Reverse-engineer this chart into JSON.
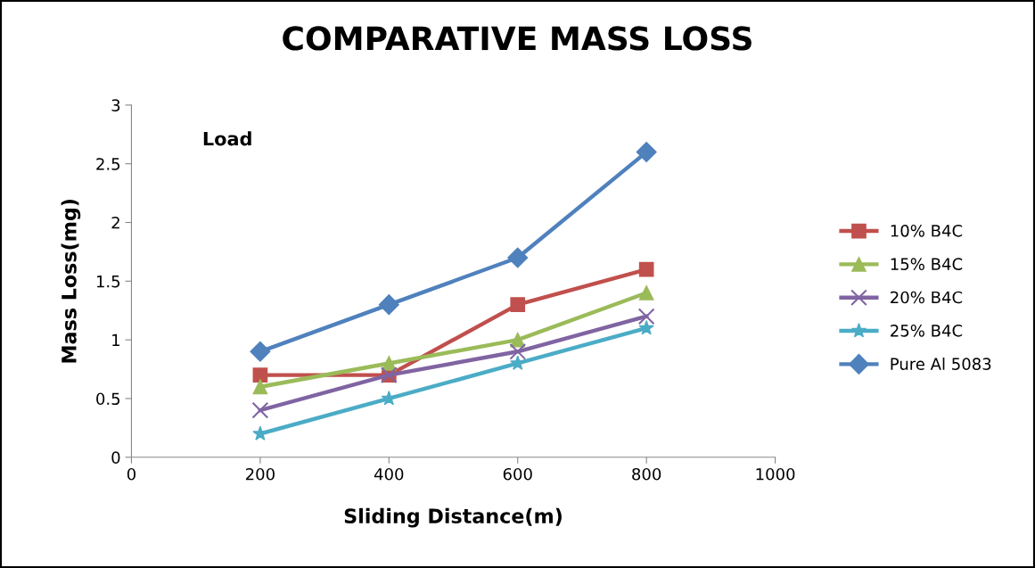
{
  "chart_data": {
    "type": "line",
    "title": "COMPARATIVE MASS LOSS",
    "xlabel": "Sliding Distance(m)",
    "ylabel": "Mass Loss(mg)",
    "annotations": [
      "Load"
    ],
    "x": [
      200,
      400,
      600,
      800
    ],
    "series": [
      {
        "name": "10% B4C",
        "color": "#c0504d",
        "marker": "square",
        "values": [
          0.7,
          0.7,
          1.3,
          1.6
        ]
      },
      {
        "name": "15% B4C",
        "color": "#9bbb59",
        "marker": "triangle",
        "values": [
          0.6,
          0.8,
          1.0,
          1.4
        ]
      },
      {
        "name": "20% B4C",
        "color": "#8064a2",
        "marker": "cross",
        "values": [
          0.4,
          0.7,
          0.9,
          1.2
        ]
      },
      {
        "name": "25% B4C",
        "color": "#4bacc6",
        "marker": "star",
        "values": [
          0.2,
          0.5,
          0.8,
          1.1
        ]
      },
      {
        "name": "Pure Al 5083",
        "color": "#4f81bd",
        "marker": "diamond",
        "values": [
          0.9,
          1.3,
          1.7,
          2.6
        ]
      }
    ],
    "xlim": [
      0,
      1000
    ],
    "xticks": [
      0,
      200,
      400,
      600,
      800,
      1000
    ],
    "ylim": [
      0,
      3
    ],
    "yticks": [
      0,
      0.5,
      1,
      1.5,
      2,
      2.5,
      3
    ],
    "grid": false,
    "legend": "right",
    "line_style": "solid"
  }
}
